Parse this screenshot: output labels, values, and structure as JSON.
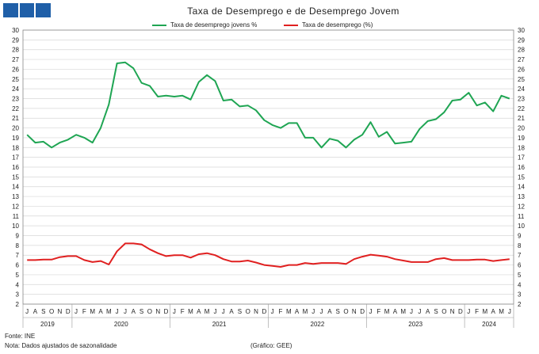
{
  "title": "Taxa de Desemprego e de Desemprego Jovem",
  "colors": {
    "youth": "#1fa553",
    "total": "#e02020",
    "logo": "#1f5fa8"
  },
  "footer": {
    "source": "Fonte: INE",
    "note": "Nota: Dados ajustados de sazonalidade",
    "credit": "(Gráfico: GEE)"
  },
  "chart_data": {
    "type": "line",
    "yticks": [
      "2",
      "3",
      "4",
      "5",
      "6",
      "7",
      "8",
      "9",
      "10",
      "11",
      "12",
      "13",
      "14",
      "15",
      "16",
      "17",
      "18",
      "19",
      "20",
      "21",
      "22",
      "23",
      "24",
      "25",
      "26",
      "27",
      "28",
      "29",
      "30"
    ],
    "ylim": [
      2,
      30
    ],
    "grid": true,
    "legend_position": "top",
    "month_labels": [
      "J",
      "A",
      "S",
      "O",
      "N",
      "D",
      "J",
      "F",
      "M",
      "A",
      "M",
      "J",
      "J",
      "A",
      "S",
      "O",
      "N",
      "D",
      "J",
      "F",
      "M",
      "A",
      "M",
      "J",
      "J",
      "A",
      "S",
      "O",
      "N",
      "D",
      "J",
      "F",
      "M",
      "A",
      "M",
      "J",
      "J",
      "A",
      "S",
      "O",
      "N",
      "D",
      "J",
      "F",
      "M",
      "A",
      "M",
      "J",
      "J",
      "A",
      "S",
      "O",
      "N",
      "D",
      "J",
      "F",
      "M",
      "A",
      "M",
      "J"
    ],
    "years": [
      {
        "label": "2019",
        "start": 0,
        "end": 5
      },
      {
        "label": "2020",
        "start": 6,
        "end": 17
      },
      {
        "label": "2021",
        "start": 18,
        "end": 29
      },
      {
        "label": "2022",
        "start": 30,
        "end": 41
      },
      {
        "label": "2023",
        "start": 42,
        "end": 53
      },
      {
        "label": "2024",
        "start": 54,
        "end": 59
      }
    ],
    "series": [
      {
        "name": "Taxa de desemprego jovens %",
        "color": "#1fa553",
        "values": [
          19.3,
          18.5,
          18.6,
          18.0,
          18.5,
          18.8,
          19.3,
          19.0,
          18.5,
          20.0,
          22.4,
          26.6,
          26.7,
          26.1,
          24.6,
          24.3,
          23.2,
          23.3,
          23.2,
          23.3,
          22.9,
          24.7,
          25.4,
          24.8,
          22.8,
          22.9,
          22.2,
          22.3,
          21.8,
          20.8,
          20.3,
          20.0,
          20.5,
          20.5,
          19.0,
          19.0,
          18.0,
          18.9,
          18.7,
          18.0,
          18.8,
          19.3,
          20.6,
          19.1,
          19.6,
          18.4,
          18.5,
          18.6,
          19.9,
          20.7,
          20.9,
          21.6,
          22.8,
          22.9,
          23.6,
          22.3,
          22.6,
          21.7,
          23.3,
          23.0
        ]
      },
      {
        "name": "Taxa de desemprego (%)",
        "color": "#e02020",
        "values": [
          6.5,
          6.5,
          6.55,
          6.55,
          6.8,
          6.9,
          6.9,
          6.5,
          6.3,
          6.4,
          6.05,
          7.4,
          8.2,
          8.2,
          8.1,
          7.6,
          7.2,
          6.9,
          7.0,
          7.0,
          6.75,
          7.1,
          7.2,
          7.0,
          6.6,
          6.35,
          6.35,
          6.45,
          6.25,
          6.0,
          5.9,
          5.8,
          6.0,
          6.0,
          6.2,
          6.1,
          6.2,
          6.2,
          6.2,
          6.1,
          6.6,
          6.85,
          7.05,
          6.95,
          6.85,
          6.6,
          6.45,
          6.3,
          6.3,
          6.3,
          6.6,
          6.7,
          6.5,
          6.5,
          6.5,
          6.55,
          6.55,
          6.4,
          6.5,
          6.6
        ]
      }
    ]
  }
}
